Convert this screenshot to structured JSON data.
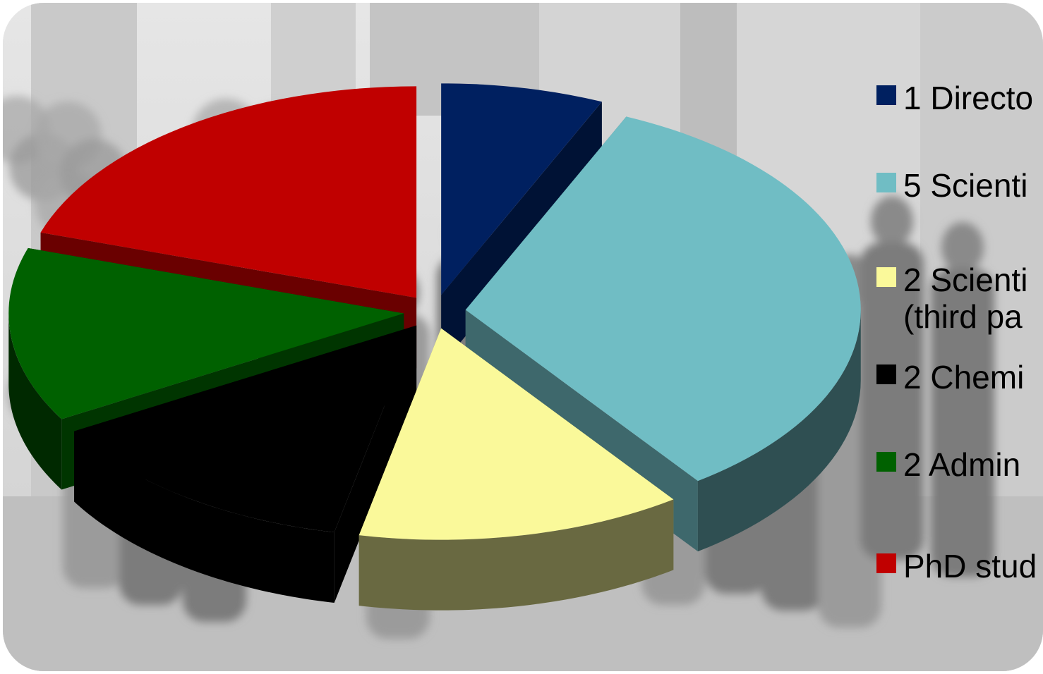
{
  "chart_data": {
    "type": "pie",
    "style": "3d-exploded",
    "legend_position": "right",
    "background": "grayscale group photo of people in front of a building",
    "title": "",
    "slices": [
      {
        "label": "1 Directo",
        "value": 1,
        "color": "#002060"
      },
      {
        "label": "5 Scienti",
        "value": 5,
        "color": "#70BDC4"
      },
      {
        "label": "2 Scienti\n(third pa",
        "value": 2,
        "color": "#FAF99A"
      },
      {
        "label": "2 Chemi",
        "value": 2,
        "color": "#000000"
      },
      {
        "label": "2 Admin",
        "value": 2,
        "color": "#006100"
      },
      {
        "label": "PhD stud",
        "value": 3,
        "color": "#C00000"
      }
    ]
  }
}
